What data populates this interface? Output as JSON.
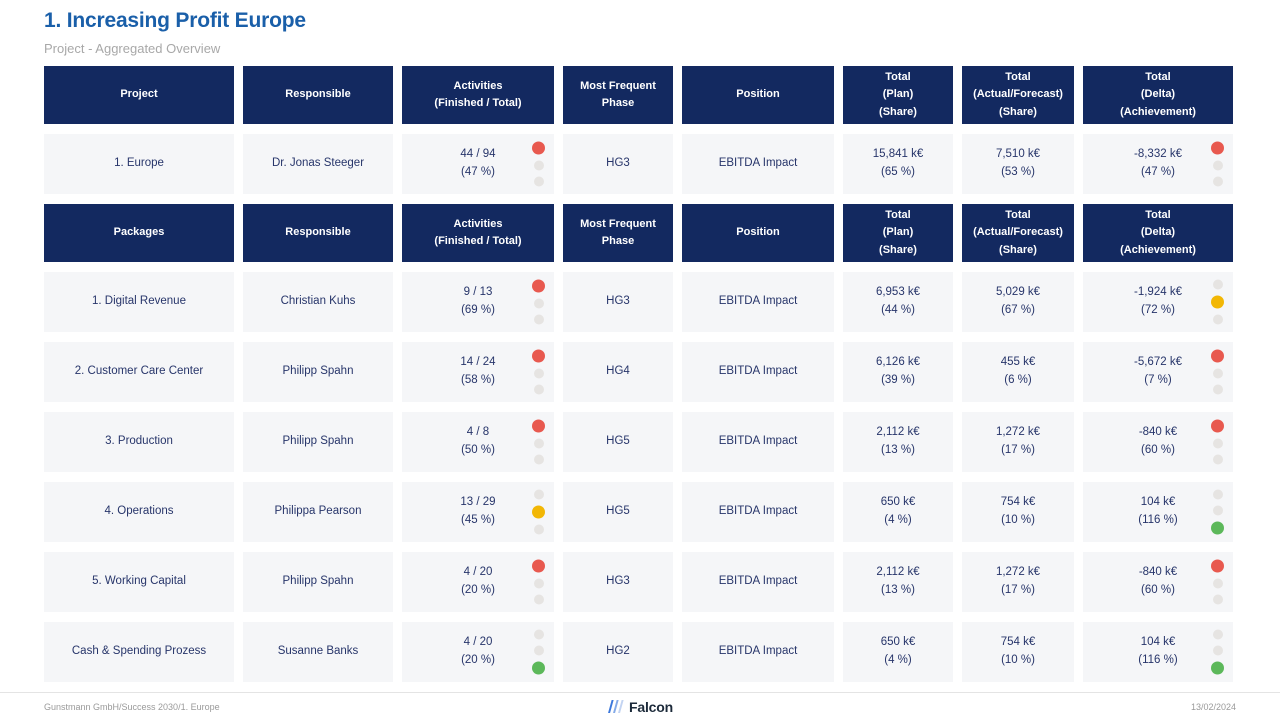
{
  "page": {
    "title": "1. Increasing Profit Europe",
    "subtitle": "Project - Aggregated Overview"
  },
  "colors": {
    "accent_blue": "#1a5fa9",
    "header_bg": "#132960",
    "cell_bg": "#f5f6f8",
    "status_red": "#e8594f",
    "status_yellow": "#f2b705",
    "status_green": "#5cb85a",
    "status_inactive": "#e6e4e2"
  },
  "table": {
    "header_project": [
      [
        "Project"
      ],
      [
        "Responsible"
      ],
      [
        "Activities",
        "(Finished / Total)"
      ],
      [
        "Most Frequent",
        "Phase"
      ],
      [
        "Position"
      ],
      [
        "Total",
        "(Plan)",
        "(Share)"
      ],
      [
        "Total",
        "(Actual/Forecast)",
        "(Share)"
      ],
      [
        "Total",
        "(Delta)",
        "(Achievement)"
      ]
    ],
    "header_packages": [
      [
        "Packages"
      ],
      [
        "Responsible"
      ],
      [
        "Activities",
        "(Finished / Total)"
      ],
      [
        "Most Frequent",
        "Phase"
      ],
      [
        "Position"
      ],
      [
        "Total",
        "(Plan)",
        "(Share)"
      ],
      [
        "Total",
        "(Actual/Forecast)",
        "(Share)"
      ],
      [
        "Total",
        "(Delta)",
        "(Achievement)"
      ]
    ],
    "project_rows": [
      {
        "name": "1. Europe",
        "responsible": "Dr. Jonas Steeger",
        "activities_ratio": "44 / 94",
        "activities_share": "(47 %)",
        "activities_status": "red",
        "phase": "HG3",
        "position": "EBITDA Impact",
        "plan_value": "15,841 k€",
        "plan_share": "(65 %)",
        "actual_value": "7,510 k€",
        "actual_share": "(53 %)",
        "delta_value": "-8,332 k€",
        "delta_share": "(47 %)",
        "delta_status": "red"
      }
    ],
    "package_rows": [
      {
        "name": "1. Digital Revenue",
        "responsible": "Christian Kuhs",
        "activities_ratio": "9 / 13",
        "activities_share": "(69 %)",
        "activities_status": "red",
        "phase": "HG3",
        "position": "EBITDA Impact",
        "plan_value": "6,953 k€",
        "plan_share": "(44 %)",
        "actual_value": "5,029 k€",
        "actual_share": "(67 %)",
        "delta_value": "-1,924 k€",
        "delta_share": "(72 %)",
        "delta_status": "yellow"
      },
      {
        "name": "2. Customer Care Center",
        "responsible": "Philipp Spahn",
        "activities_ratio": "14 / 24",
        "activities_share": "(58 %)",
        "activities_status": "red",
        "phase": "HG4",
        "position": "EBITDA Impact",
        "plan_value": "6,126 k€",
        "plan_share": "(39 %)",
        "actual_value": "455 k€",
        "actual_share": "(6 %)",
        "delta_value": "-5,672 k€",
        "delta_share": "(7 %)",
        "delta_status": "red"
      },
      {
        "name": "3. Production",
        "responsible": "Philipp Spahn",
        "activities_ratio": "4 / 8",
        "activities_share": "(50 %)",
        "activities_status": "red",
        "phase": "HG5",
        "position": "EBITDA Impact",
        "plan_value": "2,112 k€",
        "plan_share": "(13 %)",
        "actual_value": "1,272 k€",
        "actual_share": "(17 %)",
        "delta_value": "-840 k€",
        "delta_share": "(60 %)",
        "delta_status": "red"
      },
      {
        "name": "4. Operations",
        "responsible": "Philippa Pearson",
        "activities_ratio": "13 / 29",
        "activities_share": "(45 %)",
        "activities_status": "yellow",
        "phase": "HG5",
        "position": "EBITDA Impact",
        "plan_value": "650 k€",
        "plan_share": "(4 %)",
        "actual_value": "754 k€",
        "actual_share": "(10 %)",
        "delta_value": "104 k€",
        "delta_share": "(116 %)",
        "delta_status": "green"
      },
      {
        "name": "5. Working Capital",
        "responsible": "Philipp Spahn",
        "activities_ratio": "4 / 20",
        "activities_share": "(20 %)",
        "activities_status": "red",
        "phase": "HG3",
        "position": "EBITDA Impact",
        "plan_value": "2,112 k€",
        "plan_share": "(13 %)",
        "actual_value": "1,272 k€",
        "actual_share": "(17 %)",
        "delta_value": "-840 k€",
        "delta_share": "(60 %)",
        "delta_status": "red"
      },
      {
        "name": "Cash & Spending Prozess",
        "responsible": "Susanne Banks",
        "activities_ratio": "4 / 20",
        "activities_share": "(20 %)",
        "activities_status": "green",
        "phase": "HG2",
        "position": "EBITDA Impact",
        "plan_value": "650 k€",
        "plan_share": "(4 %)",
        "actual_value": "754 k€",
        "actual_share": "(10 %)",
        "delta_value": "104 k€",
        "delta_share": "(116 %)",
        "delta_status": "green"
      }
    ]
  },
  "footer": {
    "left": "Gunstmann GmbH/Success 2030/1. Europe",
    "logo_text": "Falcon",
    "date": "13/02/2024"
  }
}
